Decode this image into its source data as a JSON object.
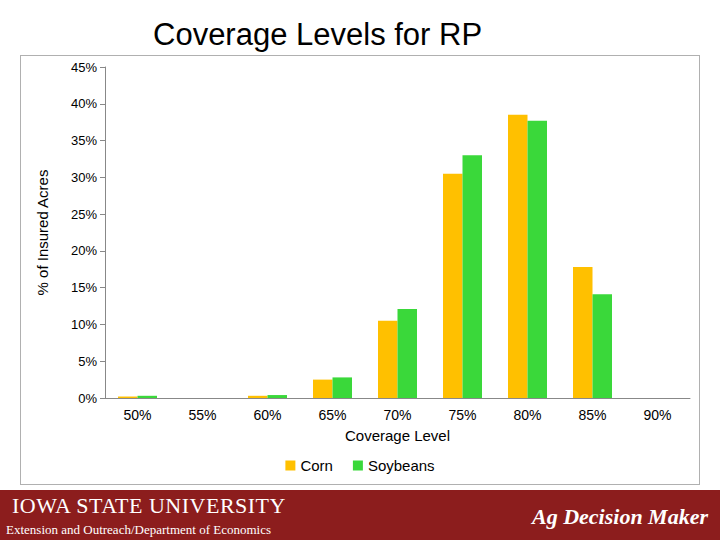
{
  "chart_data": {
    "type": "bar",
    "title": "Coverage Levels for RP",
    "x_label": "Coverage Level",
    "y_label": "% of Insured Acres",
    "categories": [
      "50%",
      "55%",
      "60%",
      "65%",
      "70%",
      "75%",
      "80%",
      "85%",
      "90%"
    ],
    "series": [
      {
        "name": "Corn",
        "color": "#FFC000",
        "values": [
          0.2,
          0,
          0.3,
          2.5,
          10.5,
          30.5,
          38.5,
          17.8,
          0
        ]
      },
      {
        "name": "Soybeans",
        "color": "#3AD83A",
        "values": [
          0.3,
          0,
          0.4,
          2.8,
          12.1,
          33,
          37.7,
          14.1,
          0
        ]
      }
    ],
    "ylim": [
      0,
      45
    ],
    "yticks": [
      {
        "value": 0,
        "label": "0%"
      },
      {
        "value": 5,
        "label": "5%"
      },
      {
        "value": 10,
        "label": "10%"
      },
      {
        "value": 15,
        "label": "15%"
      },
      {
        "value": 20,
        "label": "20%"
      },
      {
        "value": 25,
        "label": "25%"
      },
      {
        "value": 30,
        "label": "30%"
      },
      {
        "value": 35,
        "label": "35%"
      },
      {
        "value": 40,
        "label": "40%"
      },
      {
        "value": 45,
        "label": "45%"
      }
    ],
    "grid": false,
    "legend": "bottom"
  },
  "footer": {
    "institution": "IOWA STATE UNIVERSITY",
    "department": "Extension and Outreach/Department of Economics",
    "brand": "Ag Decision Maker"
  }
}
